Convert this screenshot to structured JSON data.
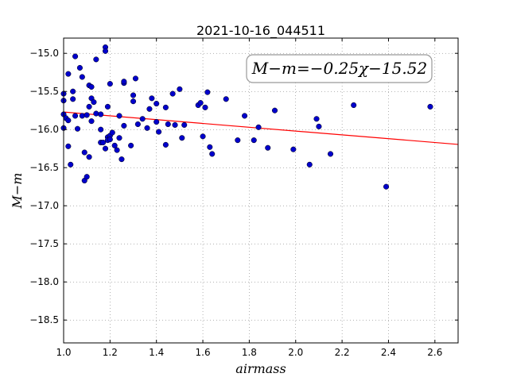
{
  "chart_data": {
    "type": "scatter",
    "title": "2021-10-16_044511",
    "xlabel": "airmass",
    "ylabel": "M−m",
    "xlim": [
      1.0,
      2.7
    ],
    "ylim": [
      -18.8,
      -14.8
    ],
    "y_inverted": true,
    "grid": true,
    "xticks": [
      1.0,
      1.2,
      1.4,
      1.6,
      1.8,
      2.0,
      2.2,
      2.4,
      2.6
    ],
    "xtick_labels": [
      "1.0",
      "1.2",
      "1.4",
      "1.6",
      "1.8",
      "2.0",
      "2.2",
      "2.4",
      "2.6"
    ],
    "yticks": [
      -15.0,
      -15.5,
      -16.0,
      -16.5,
      -17.0,
      -17.5,
      -18.0,
      -18.5
    ],
    "ytick_labels": [
      "−15.0",
      "−15.5",
      "−16.0",
      "−16.5",
      "−17.0",
      "−17.5",
      "−18.0",
      "−18.5"
    ],
    "annotation": "M−m=−0.25χ−15.52",
    "fit": {
      "slope": -0.25,
      "intercept": -15.52,
      "color": "#ff0000"
    },
    "point_color": "#0000cc",
    "points": [
      [
        1.0,
        -15.53
      ],
      [
        1.0,
        -15.62
      ],
      [
        1.0,
        -15.8
      ],
      [
        1.0,
        -15.98
      ],
      [
        1.01,
        -15.85
      ],
      [
        1.02,
        -15.88
      ],
      [
        1.02,
        -15.27
      ],
      [
        1.02,
        -16.22
      ],
      [
        1.03,
        -16.46
      ],
      [
        1.04,
        -15.5
      ],
      [
        1.04,
        -15.6
      ],
      [
        1.05,
        -15.04
      ],
      [
        1.05,
        -15.82
      ],
      [
        1.06,
        -15.99
      ],
      [
        1.07,
        -15.19
      ],
      [
        1.08,
        -15.31
      ],
      [
        1.08,
        -15.82
      ],
      [
        1.09,
        -16.3
      ],
      [
        1.09,
        -16.67
      ],
      [
        1.1,
        -15.81
      ],
      [
        1.1,
        -16.62
      ],
      [
        1.11,
        -15.42
      ],
      [
        1.11,
        -15.7
      ],
      [
        1.11,
        -16.36
      ],
      [
        1.12,
        -15.44
      ],
      [
        1.12,
        -15.59
      ],
      [
        1.12,
        -15.89
      ],
      [
        1.13,
        -15.64
      ],
      [
        1.14,
        -15.08
      ],
      [
        1.14,
        -15.79
      ],
      [
        1.16,
        -15.8
      ],
      [
        1.16,
        -16.0
      ],
      [
        1.16,
        -16.17
      ],
      [
        1.17,
        -16.17
      ],
      [
        1.18,
        -14.92
      ],
      [
        1.18,
        -14.97
      ],
      [
        1.18,
        -16.25
      ],
      [
        1.19,
        -16.1
      ],
      [
        1.19,
        -16.14
      ],
      [
        1.19,
        -15.7
      ],
      [
        1.2,
        -15.4
      ],
      [
        1.2,
        -16.08
      ],
      [
        1.2,
        -16.13
      ],
      [
        1.21,
        -16.04
      ],
      [
        1.22,
        -16.21
      ],
      [
        1.23,
        -16.27
      ],
      [
        1.24,
        -15.82
      ],
      [
        1.24,
        -16.11
      ],
      [
        1.25,
        -16.39
      ],
      [
        1.26,
        -15.39
      ],
      [
        1.26,
        -15.37
      ],
      [
        1.26,
        -15.95
      ],
      [
        1.29,
        -16.21
      ],
      [
        1.3,
        -15.55
      ],
      [
        1.3,
        -15.63
      ],
      [
        1.31,
        -15.33
      ],
      [
        1.32,
        -15.93
      ],
      [
        1.34,
        -15.86
      ],
      [
        1.36,
        -15.98
      ],
      [
        1.37,
        -15.73
      ],
      [
        1.38,
        -15.59
      ],
      [
        1.4,
        -15.9
      ],
      [
        1.4,
        -15.66
      ],
      [
        1.41,
        -16.03
      ],
      [
        1.44,
        -16.2
      ],
      [
        1.44,
        -15.71
      ],
      [
        1.45,
        -15.93
      ],
      [
        1.47,
        -15.53
      ],
      [
        1.48,
        -15.94
      ],
      [
        1.5,
        -15.47
      ],
      [
        1.51,
        -16.11
      ],
      [
        1.52,
        -15.94
      ],
      [
        1.58,
        -15.68
      ],
      [
        1.59,
        -15.65
      ],
      [
        1.6,
        -16.09
      ],
      [
        1.61,
        -15.71
      ],
      [
        1.62,
        -15.51
      ],
      [
        1.63,
        -16.23
      ],
      [
        1.64,
        -16.32
      ],
      [
        1.7,
        -15.6
      ],
      [
        1.75,
        -16.14
      ],
      [
        1.78,
        -15.82
      ],
      [
        1.82,
        -16.14
      ],
      [
        1.84,
        -15.97
      ],
      [
        1.88,
        -16.24
      ],
      [
        1.91,
        -15.75
      ],
      [
        1.99,
        -16.26
      ],
      [
        2.06,
        -16.46
      ],
      [
        2.09,
        -15.86
      ],
      [
        2.1,
        -15.96
      ],
      [
        2.15,
        -16.32
      ],
      [
        2.25,
        -15.68
      ],
      [
        2.39,
        -16.75
      ],
      [
        2.58,
        -15.7
      ]
    ]
  }
}
